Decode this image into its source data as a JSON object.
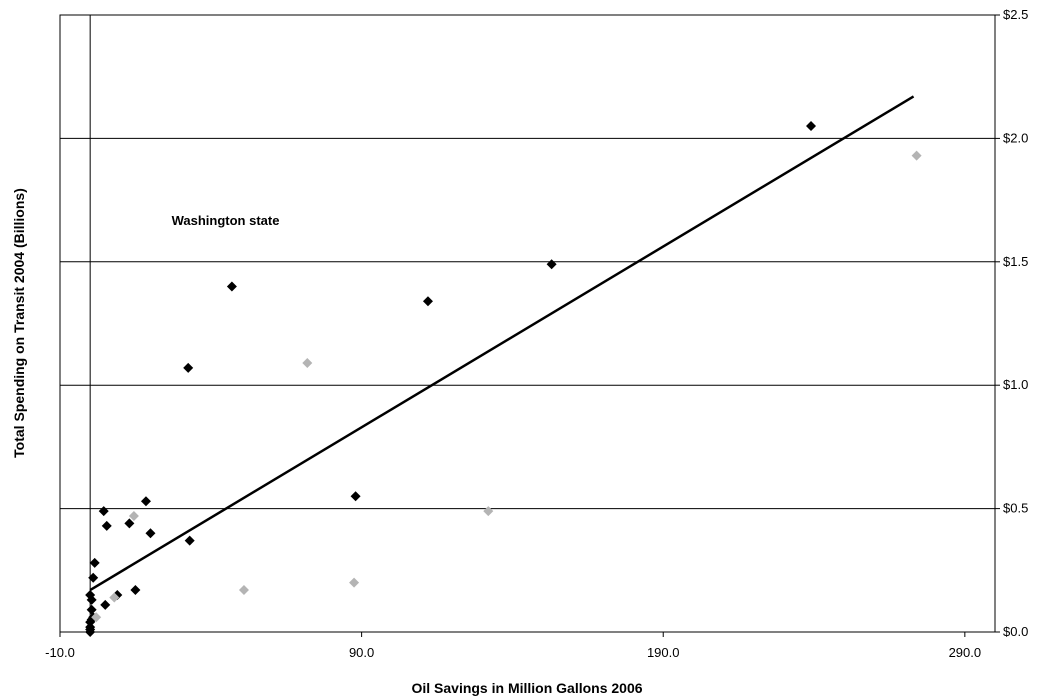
{
  "chart_data": {
    "type": "scatter",
    "title": "",
    "xlabel": "Oil Savings in Million Gallons 2006",
    "ylabel": "Total Spending on Transit 2004 (Billions)",
    "xlim": [
      -10,
      300
    ],
    "ylim": [
      0,
      2.5
    ],
    "x_ticks": [
      -10,
      90,
      190,
      290
    ],
    "x_tick_labels": [
      "-10.0",
      "90.0",
      "190.0",
      "290.0"
    ],
    "y_ticks": [
      0,
      0.5,
      1.0,
      1.5,
      2.0,
      2.5
    ],
    "y_tick_labels": [
      "$0.0",
      "$0.5",
      "$1.0",
      "$1.5",
      "$2.0",
      "$2.5"
    ],
    "y_axis_side": "right",
    "grid": "horizontal",
    "legend": "none",
    "colors": {
      "black_series": "#000000",
      "gray_series": "#b4b4b4",
      "trendline": "#000000"
    },
    "series": [
      {
        "color": "#000000",
        "marker": "diamond",
        "points": [
          [
            0,
            0.0
          ],
          [
            0,
            0.01
          ],
          [
            0,
            0.02
          ],
          [
            0,
            0.04
          ],
          [
            0.5,
            0.05
          ],
          [
            1,
            0.06
          ],
          [
            0.5,
            0.09
          ],
          [
            0.5,
            0.13
          ],
          [
            0,
            0.15
          ],
          [
            1,
            0.22
          ],
          [
            1.5,
            0.28
          ],
          [
            4.5,
            0.49
          ],
          [
            5.5,
            0.43
          ],
          [
            5,
            0.11
          ],
          [
            9,
            0.15
          ],
          [
            13,
            0.44
          ],
          [
            15,
            0.17
          ],
          [
            18.5,
            0.53
          ],
          [
            20,
            0.4
          ],
          [
            33,
            0.37
          ],
          [
            32.5,
            1.07
          ],
          [
            47,
            1.4
          ],
          [
            88,
            0.55
          ],
          [
            112,
            1.34
          ],
          [
            153,
            1.49
          ],
          [
            239,
            2.05
          ]
        ]
      },
      {
        "color": "#b4b4b4",
        "marker": "diamond",
        "points": [
          [
            2,
            0.06
          ],
          [
            8,
            0.14
          ],
          [
            14.5,
            0.47
          ],
          [
            51,
            0.17
          ],
          [
            72,
            1.09
          ],
          [
            87.5,
            0.2
          ],
          [
            132,
            0.49
          ],
          [
            274,
            1.93
          ]
        ]
      }
    ],
    "trendline": {
      "x": [
        0,
        273
      ],
      "y": [
        0.17,
        2.17
      ]
    },
    "annotations": [
      {
        "text": "Washington state",
        "x": 27,
        "y": 1.67
      }
    ]
  }
}
